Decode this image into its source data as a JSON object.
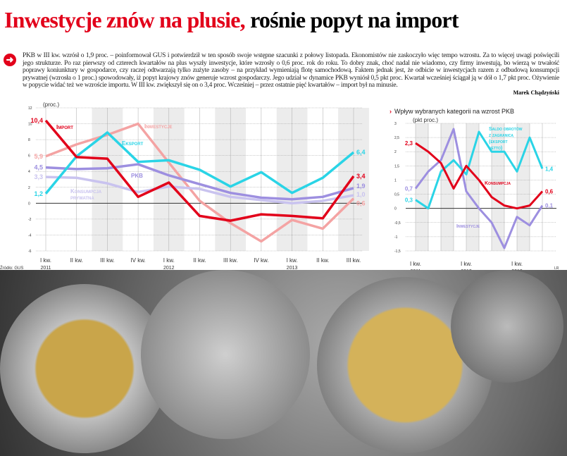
{
  "title": {
    "red": "Inwestycje znów na plusie,",
    "black": " rośnie popyt na import"
  },
  "lead": "PKB w III kw. wzrósł o 1,9 proc. – poinformował GUS i potwierdził w ten sposób swoje wstępne szacunki z połowy listopada. Ekonomistów nie zaskoczyło więc tempo wzrostu. Za to więcej uwagi poświęcili jego strukturze. Po raz pierwszy od czterech kwartałów na plus wyszły inwestycje, które wzrosły o 0,6 proc. rok do roku. To dobry znak, choć nadal nie wiadomo, czy firmy inwestują, bo wierzą w trwałość poprawy koniunktury w gospodarce, czy raczej odtwarzają tylko zużyte zasoby – na przykład wymieniają flotę samochodową. Faktem jednak jest, że odbicie w inwestycjach razem z odbudową konsumpcji prywatnej (wzrosła o 1 proc.) spowodowały, iż popyt krajowy znów generuje wzrost gospodarczy. Jego udział w dynamice PKB wyniósł 0,5 pkt proc. Kwartał wcześniej ściągał ją w dół o 1,7 pkt proc. Ożywienie w popycie widać też we wzroście importu. W III kw. zwiększył się on o 3,4 proc. Wcześniej – przez ostatnie pięć kwartałów – import był na minusie.",
  "author": "Marek Chądzyński",
  "source": "Źródło: GUS",
  "credit": "LR",
  "chart_data": [
    {
      "type": "line",
      "ylabel": "(proc.)",
      "ylim": [
        -6,
        12
      ],
      "yticks": [
        12,
        10,
        8,
        6,
        4,
        2,
        0,
        -2,
        -4,
        -6
      ],
      "categories": [
        "I kw. 2011",
        "II kw.",
        "III kw.",
        "IV kw.",
        "I kw. 2012",
        "II kw.",
        "III kw.",
        "IV kw.",
        "I kw. 2013",
        "II kw.",
        "III kw."
      ],
      "tick_labels": [
        [
          "I kw.",
          "2011"
        ],
        [
          "II kw.",
          ""
        ],
        [
          "III kw.",
          ""
        ],
        [
          "IV kw.",
          ""
        ],
        [
          "I kw.",
          "2012"
        ],
        [
          "II kw.",
          ""
        ],
        [
          "III kw.",
          ""
        ],
        [
          "IV kw.",
          ""
        ],
        [
          "I kw.",
          "2013"
        ],
        [
          "II kw.",
          ""
        ],
        [
          "III kw.",
          ""
        ]
      ],
      "series": [
        {
          "name": "Inwestycje",
          "color": "#f4a3a3",
          "values": [
            5.9,
            7.4,
            8.6,
            10.0,
            5.1,
            0.3,
            -2.5,
            -4.8,
            -2.1,
            -3.2,
            0.6
          ],
          "start_label": "5,9",
          "end_label": "0,6"
        },
        {
          "name": "Konsumpcja prywatna",
          "color": "#c9c3ef",
          "values": [
            3.3,
            3.2,
            2.5,
            1.4,
            2.1,
            1.8,
            0.8,
            0.4,
            0.0,
            0.3,
            1.0
          ],
          "start_label": "3,3",
          "end_label": "1,0"
        },
        {
          "name": "PKB",
          "color": "#9d8fe0",
          "values": [
            4.5,
            4.3,
            4.4,
            4.9,
            3.5,
            2.4,
            1.3,
            0.7,
            0.5,
            0.8,
            1.9
          ],
          "start_label": "4,5",
          "end_label": "1,9"
        },
        {
          "name": "Eksport",
          "color": "#2ad4e6",
          "values": [
            1.2,
            5.9,
            8.9,
            5.2,
            5.4,
            4.2,
            2.1,
            3.9,
            1.3,
            3.2,
            6.4
          ],
          "start_label": "1,2",
          "end_label": "6,4"
        },
        {
          "name": "Import",
          "color": "#e2001a",
          "values": [
            10.4,
            5.8,
            5.6,
            0.8,
            2.6,
            -1.6,
            -2.2,
            -1.4,
            -1.6,
            -1.9,
            3.4
          ],
          "start_label": "10,4",
          "end_label": "3,4"
        }
      ]
    },
    {
      "type": "line",
      "title": "Wpływ wybranych kategorii na wzrost PKB",
      "ylabel": "(pkt proc.)",
      "ylim": [
        -1.5,
        3.0
      ],
      "yticks": [
        3.0,
        2.5,
        2.0,
        1.5,
        1.0,
        0.5,
        0.0,
        -0.5,
        -1.0,
        -1.5
      ],
      "tick_labels": [
        [
          "I kw.",
          "2011"
        ],
        [
          "I kw.",
          "2012"
        ],
        [
          "I kw.",
          "2013"
        ]
      ],
      "series": [
        {
          "name": "Inwestycje",
          "color": "#9d8fe0",
          "values": [
            0.7,
            1.3,
            1.7,
            2.8,
            0.6,
            0.0,
            -0.5,
            -1.4,
            -0.3,
            -0.6,
            0.1
          ],
          "start_label": "0,7",
          "end_label": "0,1"
        },
        {
          "name": "Saldo obrotów z zagranicą (eksport netto)",
          "color": "#2ad4e6",
          "values": [
            0.3,
            0.0,
            1.3,
            1.7,
            1.2,
            2.7,
            2.0,
            2.0,
            1.3,
            2.5,
            1.4
          ],
          "start_label": "0,3",
          "end_label": "1,4"
        },
        {
          "name": "Konsumpcja",
          "color": "#e2001a",
          "values": [
            2.3,
            2.0,
            1.6,
            0.7,
            1.5,
            1.0,
            0.4,
            0.1,
            0.0,
            0.1,
            0.6
          ],
          "start_label": "2,3",
          "end_label": "0,6"
        }
      ]
    }
  ]
}
